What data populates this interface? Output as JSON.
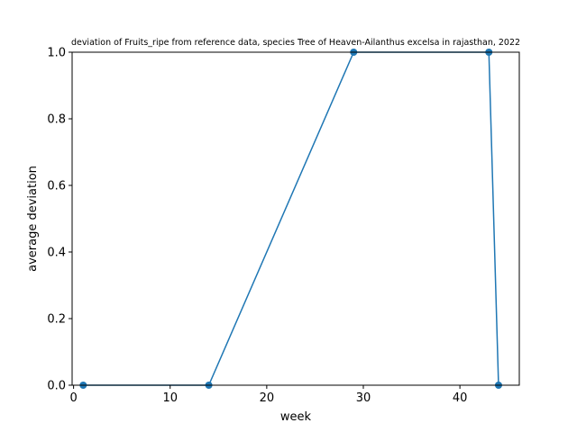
{
  "chart_data": {
    "type": "line",
    "title": "deviation of Fruits_ripe from reference data, species Tree of Heaven-Ailanthus excelsa in rajasthan, 2022",
    "xlabel": "week",
    "ylabel": "average deviation",
    "xlim": [
      -0.15,
      46.15
    ],
    "ylim": [
      0,
      1.0
    ],
    "xticks": [
      0,
      10,
      20,
      30,
      40
    ],
    "yticks": [
      0.0,
      0.2,
      0.4,
      0.6,
      0.8,
      1.0
    ],
    "xtick_labels": [
      "0",
      "10",
      "20",
      "30",
      "40"
    ],
    "ytick_labels": [
      "0.0",
      "0.2",
      "0.4",
      "0.6",
      "0.8",
      "1.0"
    ],
    "grid": false,
    "legend": "none",
    "series": [
      {
        "color": "#1f77b4",
        "marker": "circle",
        "x": [
          1,
          14,
          29,
          43,
          44
        ],
        "y": [
          0.0,
          0.0,
          1.0,
          1.0,
          0.0
        ]
      }
    ]
  }
}
